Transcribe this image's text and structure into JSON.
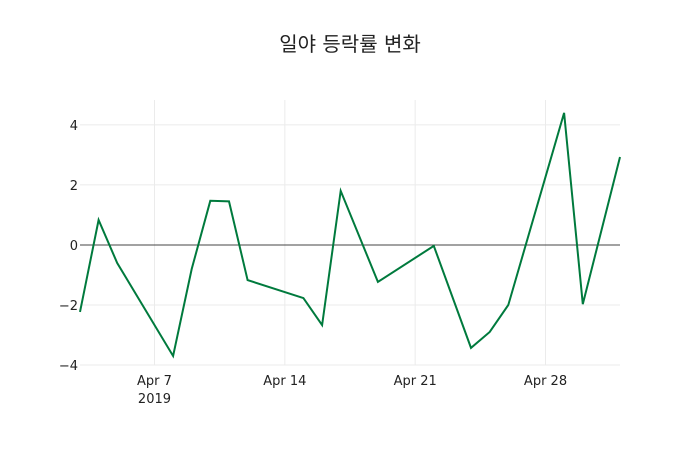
{
  "chart_data": {
    "type": "line",
    "title": "일야 등락률 변화",
    "xlabel": "",
    "ylabel": "",
    "x": [
      "2019-04-03",
      "2019-04-04",
      "2019-04-05",
      "2019-04-08",
      "2019-04-09",
      "2019-04-10",
      "2019-04-11",
      "2019-04-12",
      "2019-04-15",
      "2019-04-16",
      "2019-04-17",
      "2019-04-19",
      "2019-04-22",
      "2019-04-24",
      "2019-04-25",
      "2019-04-26",
      "2019-04-29",
      "2019-04-30",
      "2019-05-02"
    ],
    "series": [
      {
        "name": "등락률",
        "color": "#007a3d",
        "values": [
          -2.23,
          0.83,
          -0.6,
          -3.7,
          -0.8,
          1.47,
          1.45,
          -1.17,
          -1.77,
          -2.67,
          1.8,
          -1.23,
          -0.03,
          -3.43,
          -2.9,
          -2.0,
          4.4,
          -1.97,
          2.93
        ]
      }
    ],
    "xticks": [
      {
        "date": "2019-04-07",
        "label": "Apr 7",
        "sublabel": "2019"
      },
      {
        "date": "2019-04-14",
        "label": "Apr 14",
        "sublabel": ""
      },
      {
        "date": "2019-04-21",
        "label": "Apr 21",
        "sublabel": ""
      },
      {
        "date": "2019-04-28",
        "label": "Apr 28",
        "sublabel": ""
      }
    ],
    "yticks": [
      4,
      2,
      0,
      -2,
      -4
    ],
    "ytick_labels": [
      "4",
      "2",
      "0",
      "−2",
      "−4"
    ],
    "xlim": [
      "2019-04-03",
      "2019-05-02"
    ],
    "ylim": [
      -4.0,
      4.83
    ],
    "grid": true,
    "zeroline": true,
    "legend": false
  }
}
